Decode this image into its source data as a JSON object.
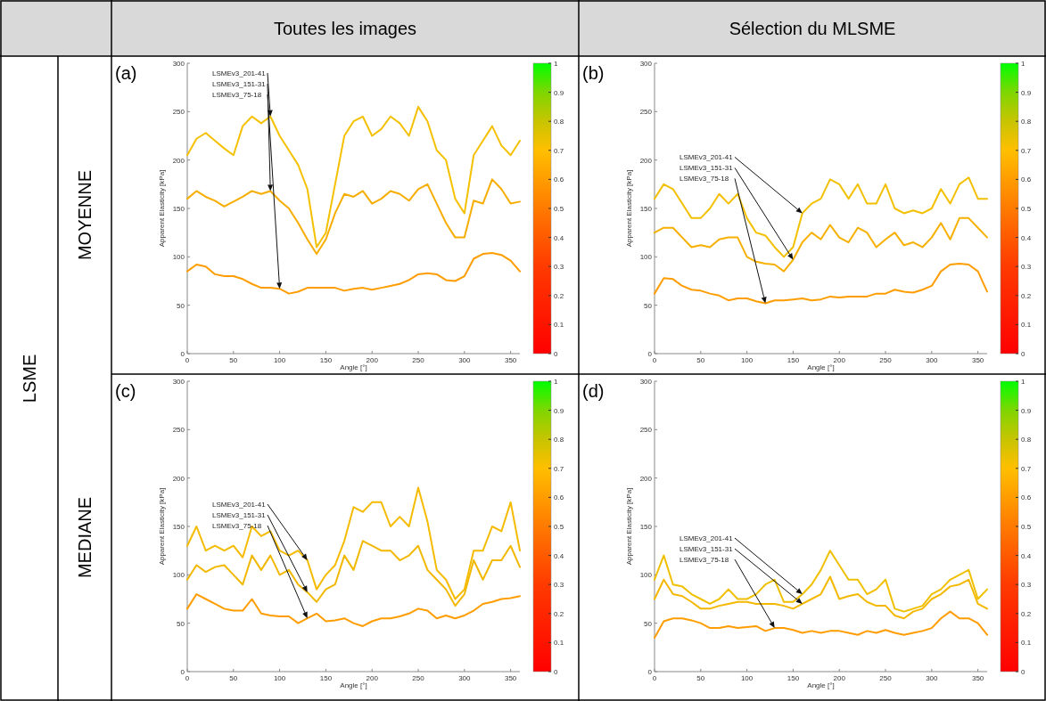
{
  "chart_data": [
    {
      "type": "line",
      "title": "(a)",
      "xlabel": "Angle [°]",
      "ylabel": "Apparent Elasticity [kPa]",
      "x": [
        0,
        10,
        20,
        30,
        40,
        50,
        60,
        70,
        80,
        90,
        100,
        110,
        120,
        130,
        140,
        150,
        160,
        170,
        180,
        190,
        200,
        210,
        220,
        230,
        240,
        250,
        260,
        270,
        280,
        290,
        300,
        310,
        320,
        330,
        340,
        350,
        360
      ],
      "xlim": [
        0,
        360
      ],
      "xticks": [
        0,
        50,
        100,
        150,
        200,
        250,
        300,
        350
      ],
      "ylim": [
        0,
        300
      ],
      "yticks": [
        0,
        50,
        100,
        150,
        200,
        250,
        300
      ],
      "clim": [
        0,
        1
      ],
      "cticks": [
        0,
        0.1,
        0.2,
        0.3,
        0.4,
        0.5,
        0.6,
        0.7,
        0.8,
        0.9,
        1
      ],
      "series": [
        {
          "color": "#f5c000",
          "values": [
            205,
            222,
            228,
            220,
            212,
            205,
            235,
            245,
            238,
            245,
            225,
            210,
            195,
            170,
            110,
            125,
            175,
            225,
            240,
            245,
            225,
            232,
            245,
            238,
            225,
            255,
            240,
            210,
            200,
            160,
            145,
            205,
            220,
            235,
            215,
            205,
            220
          ]
        },
        {
          "color": "#f7ad00",
          "values": [
            160,
            168,
            162,
            158,
            152,
            157,
            162,
            168,
            165,
            168,
            158,
            150,
            135,
            118,
            103,
            118,
            145,
            165,
            162,
            168,
            155,
            160,
            168,
            165,
            158,
            170,
            175,
            155,
            135,
            120,
            120,
            158,
            155,
            180,
            170,
            155,
            157
          ]
        },
        {
          "color": "#ff9d00",
          "values": [
            85,
            92,
            90,
            82,
            80,
            80,
            77,
            72,
            68,
            68,
            67,
            62,
            64,
            68,
            68,
            68,
            68,
            65,
            67,
            68,
            66,
            68,
            70,
            72,
            76,
            82,
            83,
            82,
            76,
            75,
            80,
            98,
            103,
            104,
            102,
            96,
            85
          ]
        }
      ],
      "annotations": [
        "Toutes les images",
        "MOYENNE",
        "LSME",
        {
          "text": "LSMEv3_201-41",
          "x": 90,
          "y": 245
        },
        {
          "text": "LSMEv3_151-31",
          "x": 90,
          "y": 168
        },
        {
          "text": "LSMEv3_75-18",
          "x": 100,
          "y": 67
        }
      ]
    },
    {
      "type": "line",
      "title": "(b)",
      "xlabel": "Angle [°]",
      "ylabel": "Apparent Elasticity [kPa]",
      "x": [
        0,
        10,
        20,
        30,
        40,
        50,
        60,
        70,
        80,
        90,
        100,
        110,
        120,
        130,
        140,
        150,
        160,
        170,
        180,
        190,
        200,
        210,
        220,
        230,
        240,
        250,
        260,
        270,
        280,
        290,
        300,
        310,
        320,
        330,
        340,
        350,
        360
      ],
      "xlim": [
        0,
        360
      ],
      "xticks": [
        0,
        50,
        100,
        150,
        200,
        250,
        300,
        350
      ],
      "ylim": [
        0,
        300
      ],
      "yticks": [
        0,
        50,
        100,
        150,
        200,
        250,
        300
      ],
      "clim": [
        0,
        1
      ],
      "cticks": [
        0,
        0.1,
        0.2,
        0.3,
        0.4,
        0.5,
        0.6,
        0.7,
        0.8,
        0.9,
        1
      ],
      "series": [
        {
          "color": "#f2c000",
          "values": [
            160,
            175,
            170,
            155,
            140,
            140,
            150,
            165,
            155,
            165,
            140,
            125,
            122,
            110,
            100,
            110,
            145,
            155,
            160,
            180,
            175,
            160,
            175,
            155,
            155,
            175,
            150,
            145,
            148,
            145,
            150,
            170,
            155,
            175,
            182,
            160,
            160
          ]
        },
        {
          "color": "#f7b000",
          "values": [
            125,
            130,
            130,
            120,
            110,
            112,
            110,
            118,
            120,
            120,
            100,
            95,
            93,
            92,
            85,
            97,
            115,
            125,
            118,
            133,
            120,
            115,
            130,
            125,
            110,
            118,
            125,
            112,
            115,
            110,
            120,
            135,
            118,
            140,
            140,
            130,
            120
          ]
        },
        {
          "color": "#ff9d00",
          "values": [
            62,
            78,
            77,
            70,
            66,
            65,
            62,
            60,
            55,
            57,
            57,
            54,
            52,
            55,
            55,
            56,
            57,
            55,
            56,
            59,
            58,
            59,
            59,
            59,
            62,
            62,
            66,
            64,
            63,
            66,
            70,
            85,
            92,
            93,
            92,
            85,
            64
          ]
        }
      ],
      "annotations": [
        "Sélection du MLSME",
        {
          "text": "LSMEv3_201-41",
          "x": 160,
          "y": 145
        },
        {
          "text": "LSMEv3_151-31",
          "x": 150,
          "y": 97
        },
        {
          "text": "LSMEv3_75-18",
          "x": 120,
          "y": 52
        }
      ]
    },
    {
      "type": "line",
      "title": "(c)",
      "xlabel": "Angle [°]",
      "ylabel": "Apparent Elasticity [kPa]",
      "x": [
        0,
        10,
        20,
        30,
        40,
        50,
        60,
        70,
        80,
        90,
        100,
        110,
        120,
        130,
        140,
        150,
        160,
        170,
        180,
        190,
        200,
        210,
        220,
        230,
        240,
        250,
        260,
        270,
        280,
        290,
        300,
        310,
        320,
        330,
        340,
        350,
        360
      ],
      "xlim": [
        0,
        360
      ],
      "xticks": [
        0,
        50,
        100,
        150,
        200,
        250,
        300,
        350
      ],
      "ylim": [
        0,
        300
      ],
      "yticks": [
        0,
        50,
        100,
        150,
        200,
        250,
        300
      ],
      "clim": [
        0,
        1
      ],
      "cticks": [
        0,
        0.1,
        0.2,
        0.3,
        0.4,
        0.5,
        0.6,
        0.7,
        0.8,
        0.9,
        1
      ],
      "series": [
        {
          "color": "#f5bb00",
          "values": [
            130,
            150,
            125,
            130,
            125,
            130,
            118,
            150,
            140,
            145,
            125,
            120,
            125,
            115,
            85,
            100,
            110,
            135,
            170,
            165,
            175,
            175,
            150,
            160,
            150,
            190,
            155,
            105,
            95,
            75,
            85,
            125,
            125,
            150,
            145,
            175,
            125
          ]
        },
        {
          "color": "#f2b800",
          "values": [
            95,
            110,
            103,
            108,
            110,
            100,
            90,
            120,
            105,
            120,
            100,
            105,
            90,
            82,
            72,
            85,
            90,
            120,
            105,
            135,
            130,
            125,
            125,
            115,
            120,
            130,
            105,
            95,
            85,
            68,
            80,
            115,
            95,
            115,
            115,
            130,
            108
          ]
        },
        {
          "color": "#ff9d00",
          "values": [
            65,
            80,
            75,
            70,
            65,
            63,
            63,
            75,
            60,
            58,
            57,
            57,
            50,
            55,
            60,
            52,
            53,
            55,
            50,
            47,
            52,
            55,
            55,
            57,
            60,
            65,
            63,
            55,
            58,
            55,
            58,
            63,
            70,
            72,
            75,
            76,
            78
          ]
        }
      ],
      "annotations": [
        "MEDIANE",
        {
          "text": "LSMEv3_201-41",
          "x": 130,
          "y": 115
        },
        {
          "text": "LSMEv3_151-31",
          "x": 130,
          "y": 82
        },
        {
          "text": "LSMEv3_75-18",
          "x": 130,
          "y": 55
        }
      ]
    },
    {
      "type": "line",
      "title": "(d)",
      "xlabel": "Angle [°]",
      "ylabel": "Apparent Elasticity [kPa]",
      "x": [
        0,
        10,
        20,
        30,
        40,
        50,
        60,
        70,
        80,
        90,
        100,
        110,
        120,
        130,
        140,
        150,
        160,
        170,
        180,
        190,
        200,
        210,
        220,
        230,
        240,
        250,
        260,
        270,
        280,
        290,
        300,
        310,
        320,
        330,
        340,
        350,
        360
      ],
      "xlim": [
        0,
        360
      ],
      "xticks": [
        0,
        50,
        100,
        150,
        200,
        250,
        300,
        350
      ],
      "ylim": [
        0,
        300
      ],
      "yticks": [
        0,
        50,
        100,
        150,
        200,
        250,
        300
      ],
      "clim": [
        0,
        1
      ],
      "cticks": [
        0,
        0.1,
        0.2,
        0.3,
        0.4,
        0.5,
        0.6,
        0.7,
        0.8,
        0.9,
        1
      ],
      "series": [
        {
          "color": "#f0c000",
          "values": [
            95,
            120,
            90,
            88,
            80,
            75,
            70,
            75,
            85,
            75,
            75,
            80,
            90,
            95,
            72,
            72,
            80,
            90,
            105,
            125,
            110,
            95,
            95,
            80,
            85,
            95,
            65,
            62,
            65,
            68,
            80,
            85,
            95,
            100,
            105,
            75,
            85
          ]
        },
        {
          "color": "#f5b800",
          "values": [
            75,
            95,
            80,
            78,
            72,
            65,
            65,
            68,
            70,
            72,
            72,
            70,
            70,
            70,
            68,
            65,
            70,
            75,
            80,
            98,
            75,
            78,
            80,
            72,
            68,
            68,
            58,
            55,
            62,
            65,
            75,
            80,
            88,
            90,
            95,
            70,
            65
          ]
        },
        {
          "color": "#ff9d00",
          "values": [
            35,
            52,
            55,
            55,
            53,
            50,
            45,
            45,
            47,
            45,
            46,
            47,
            42,
            45,
            45,
            43,
            40,
            42,
            40,
            42,
            42,
            40,
            38,
            42,
            40,
            43,
            40,
            38,
            40,
            42,
            45,
            55,
            62,
            55,
            55,
            50,
            38
          ]
        }
      ],
      "annotations": [
        {
          "text": "LSMEv3_201-41",
          "x": 160,
          "y": 80
        },
        {
          "text": "LSMEv3_151-31",
          "x": 160,
          "y": 70
        },
        {
          "text": "LSMEv3_75-18",
          "x": 130,
          "y": 45
        }
      ]
    }
  ]
}
